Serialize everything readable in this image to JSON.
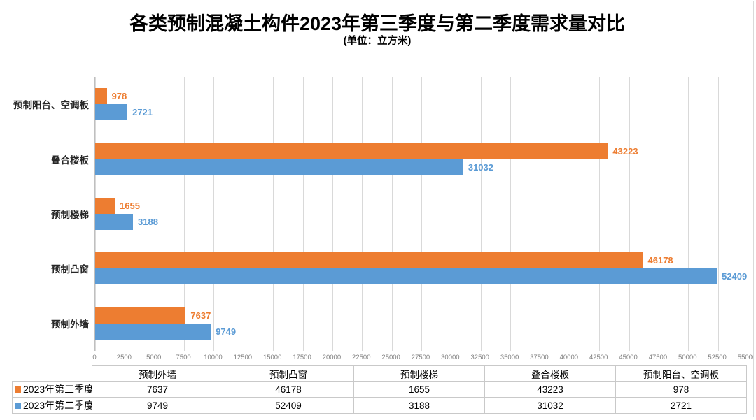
{
  "header": {
    "title": "各类预制混凝土构件2023年第三季度与第二季度需求量对比",
    "subtitle": "(单位：立方米)"
  },
  "colors": {
    "series_q3": "#ED7D31",
    "series_q2": "#5B9BD5",
    "gridline": "#D9D9D9",
    "tick_text": "#7F7F7F",
    "category_text": "#262626",
    "table_border": "#C9C9C9",
    "chart_border": "#D9D9D9"
  },
  "chart_data": {
    "type": "bar",
    "orientation": "horizontal",
    "title": "各类预制混凝土构件2023年第三季度与第二季度需求量对比",
    "subtitle": "(单位：立方米)",
    "xlabel": "",
    "ylabel": "",
    "categories": [
      "预制外墙",
      "预制凸窗",
      "预制楼梯",
      "叠合楼板",
      "预制阳台、空调板"
    ],
    "display_order_top_to_bottom": [
      "预制阳台、空调板",
      "叠合楼板",
      "预制楼梯",
      "预制凸窗",
      "预制外墙"
    ],
    "series": [
      {
        "name": "2023年第三季度",
        "color": "#ED7D31",
        "values": [
          7637,
          46178,
          1655,
          43223,
          978
        ]
      },
      {
        "name": "2023年第二季度",
        "color": "#5B9BD5",
        "values": [
          9749,
          52409,
          3188,
          31032,
          2721
        ]
      }
    ],
    "xlim": [
      0,
      55000
    ],
    "x_tick_step": 2500,
    "x_ticks": [
      0,
      2500,
      5000,
      7500,
      10000,
      12500,
      15000,
      17500,
      20000,
      22500,
      25000,
      27500,
      30000,
      32500,
      35000,
      37500,
      40000,
      42500,
      45000,
      47500,
      50000,
      52500,
      55000
    ],
    "grid": true,
    "data_labels": true,
    "legend_position": "bottom-table"
  },
  "table": {
    "corner": "",
    "headers": [
      "预制外墙",
      "预制凸窗",
      "预制楼梯",
      "叠合楼板",
      "预制阳台、空调板"
    ],
    "rows": [
      {
        "label": "2023年第三季度",
        "key_color": "#ED7D31",
        "values": [
          "7637",
          "46178",
          "1655",
          "43223",
          "978"
        ]
      },
      {
        "label": "2023年第二季度",
        "key_color": "#5B9BD5",
        "values": [
          "9749",
          "52409",
          "3188",
          "31032",
          "2721"
        ]
      }
    ]
  }
}
